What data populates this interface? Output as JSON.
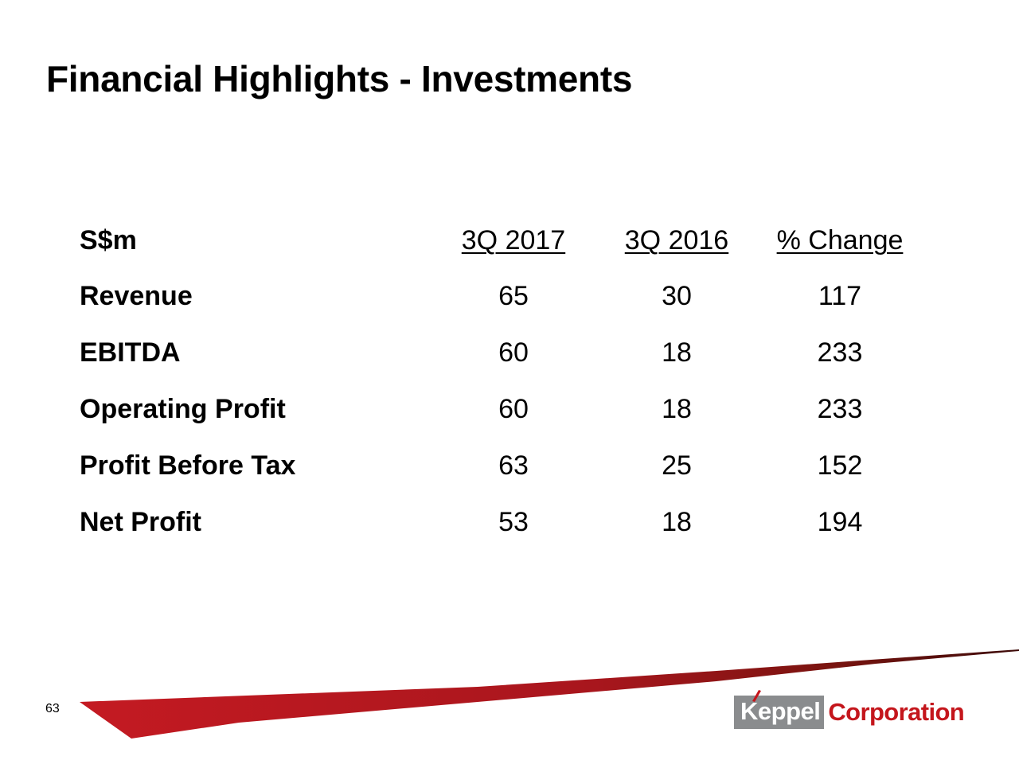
{
  "slide": {
    "title": "Financial Highlights - Investments",
    "page_number": "63"
  },
  "table": {
    "headers": {
      "label": "S$m",
      "current": "3Q 2017",
      "previous": "3Q 2016",
      "change": "% Change"
    },
    "rows": [
      {
        "label": "Revenue",
        "current": "65",
        "previous": "30",
        "change": "117"
      },
      {
        "label": "EBITDA",
        "current": "60",
        "previous": "18",
        "change": "233"
      },
      {
        "label": "Operating Profit",
        "current": "60",
        "previous": "18",
        "change": "233"
      },
      {
        "label": "Profit Before Tax",
        "current": "63",
        "previous": "25",
        "change": "152"
      },
      {
        "label": "Net Profit",
        "current": "53",
        "previous": "18",
        "change": "194"
      }
    ]
  },
  "logo": {
    "brand_name": "Keppel",
    "brand_suffix": "Corporation",
    "brand_color": "#c4161c",
    "box_color": "#8a8c8e"
  },
  "colors": {
    "swoosh_start": "#c41a22",
    "swoosh_end": "#3c0a08"
  }
}
